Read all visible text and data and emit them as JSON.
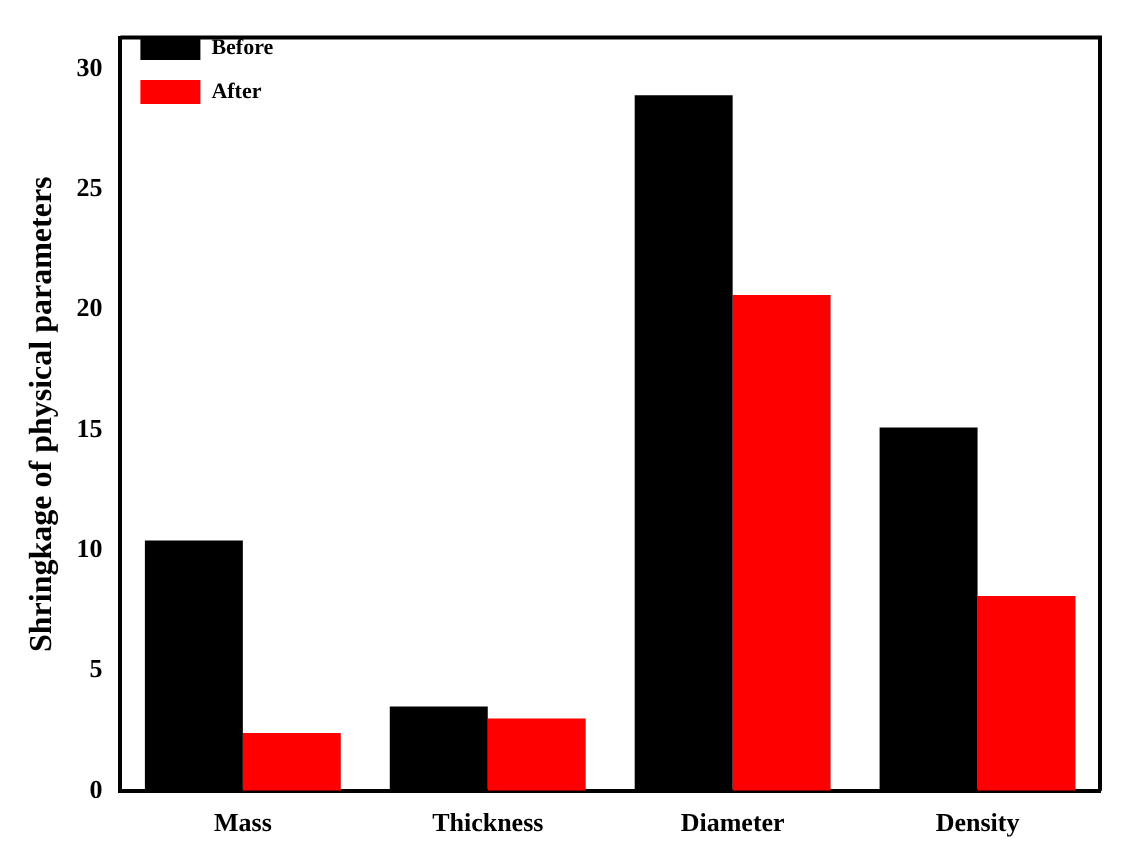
{
  "chart_data": {
    "type": "bar",
    "ylabel": "Shringkage of physical parameters",
    "categories": [
      "Mass",
      "Thickness",
      "Diameter",
      "Density"
    ],
    "series": [
      {
        "name": "Before",
        "color": "#000000",
        "values": [
          10.4,
          3.5,
          28.9,
          15.1
        ]
      },
      {
        "name": "After",
        "color": "#ff0000",
        "values": [
          2.4,
          3.0,
          20.6,
          8.1
        ]
      }
    ],
    "ylim": [
      0,
      31.3
    ],
    "yticks": [
      0,
      5,
      10,
      15,
      20,
      25,
      30
    ],
    "grid": false,
    "legend": "top left"
  }
}
